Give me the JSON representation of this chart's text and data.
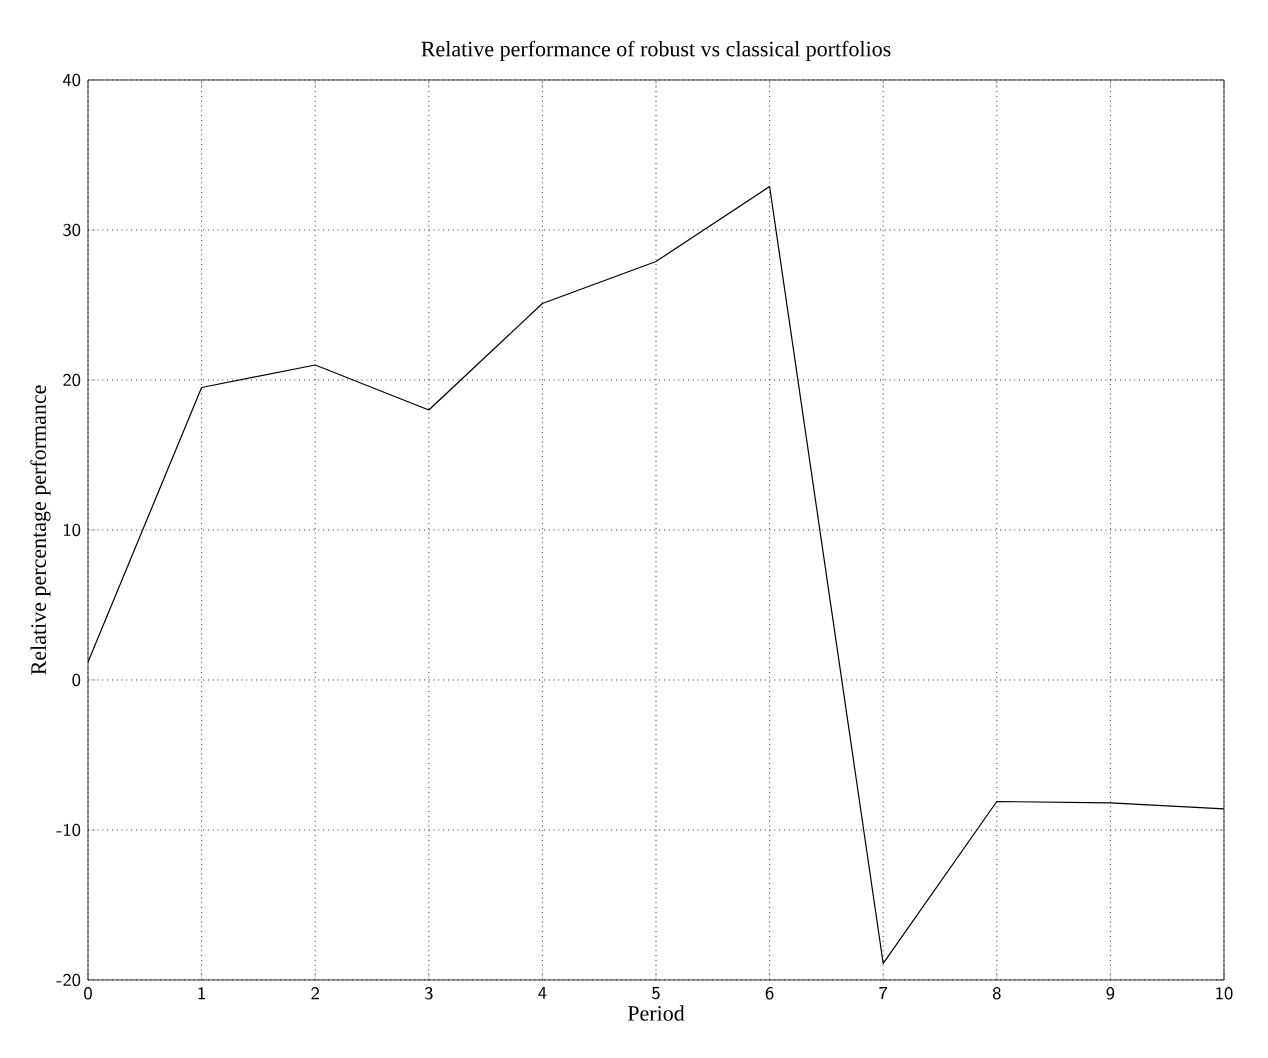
{
  "chart_data": {
    "type": "line",
    "title": "Relative performance of robust vs classical portfolios",
    "xlabel": "Period",
    "ylabel": "Relative percentage performance",
    "x": [
      0,
      1,
      2,
      3,
      4,
      5,
      6,
      7,
      8,
      9,
      10
    ],
    "series": [
      {
        "color": "#000000",
        "values": [
          1.2,
          19.5,
          21,
          18,
          25.1,
          27.9,
          32.9,
          -18.9,
          -8.1,
          -8.2,
          -8.6
        ]
      }
    ],
    "xlim": [
      0,
      10
    ],
    "ylim": [
      -20,
      40
    ],
    "xticks": [
      0,
      1,
      2,
      3,
      4,
      5,
      6,
      7,
      8,
      9,
      10
    ],
    "yticks": [
      -20,
      -10,
      0,
      10,
      20,
      30,
      40
    ],
    "grid": true,
    "marker": "none",
    "line_style": "solid"
  }
}
